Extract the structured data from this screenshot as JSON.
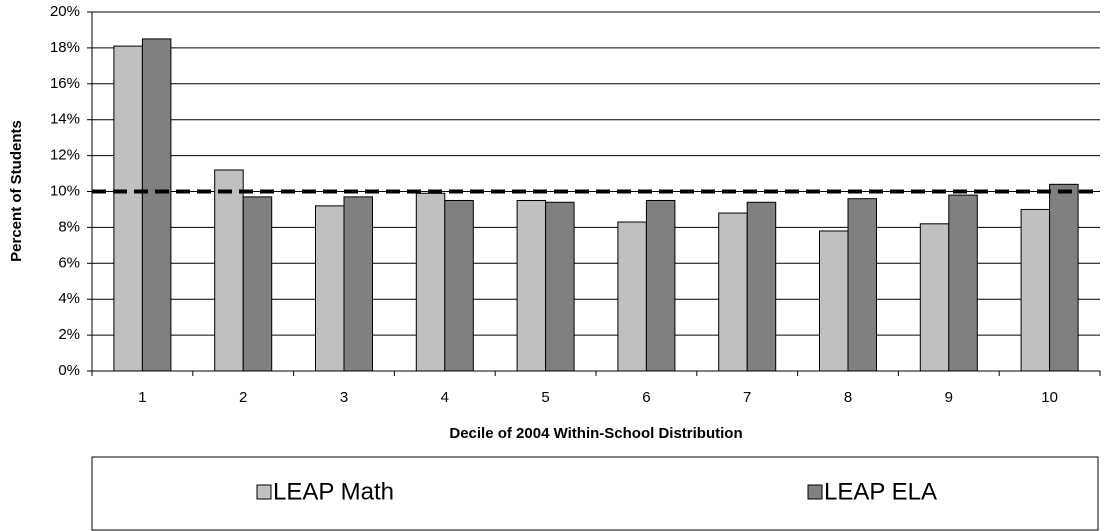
{
  "chart_data": {
    "type": "bar",
    "x_label": "Decile of 2004 Within-School Distribution",
    "y_label": "Percent of Students",
    "categories": [
      "1",
      "2",
      "3",
      "4",
      "5",
      "6",
      "7",
      "8",
      "9",
      "10"
    ],
    "series": [
      {
        "name": "LEAP Math",
        "color": "#c0c0c0",
        "values": [
          18.1,
          11.2,
          9.2,
          9.9,
          9.5,
          8.3,
          8.8,
          7.8,
          8.2,
          9.0
        ]
      },
      {
        "name": "LEAP ELA",
        "color": "#808080",
        "values": [
          18.5,
          9.7,
          9.7,
          9.5,
          9.4,
          9.5,
          9.4,
          9.6,
          9.8,
          10.4
        ]
      }
    ],
    "reference_line": 10,
    "ylim": [
      0,
      20
    ],
    "yticks": [
      {
        "value": 0,
        "label": "0%"
      },
      {
        "value": 2,
        "label": "2%"
      },
      {
        "value": 4,
        "label": "4%"
      },
      {
        "value": 6,
        "label": "6%"
      },
      {
        "value": 8,
        "label": "8%"
      },
      {
        "value": 10,
        "label": "10%"
      },
      {
        "value": 12,
        "label": "12%"
      },
      {
        "value": 14,
        "label": "14%"
      },
      {
        "value": 16,
        "label": "16%"
      },
      {
        "value": 18,
        "label": "18%"
      },
      {
        "value": 20,
        "label": "20%"
      }
    ],
    "grid": true,
    "legend": "bottom"
  }
}
